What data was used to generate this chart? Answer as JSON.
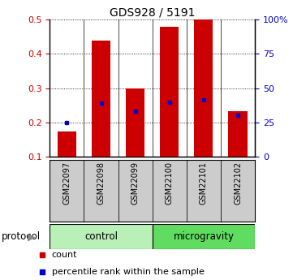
{
  "title": "GDS928 / 5191",
  "samples": [
    "GSM22097",
    "GSM22098",
    "GSM22099",
    "GSM22100",
    "GSM22101",
    "GSM22102"
  ],
  "red_bar_top": [
    0.175,
    0.438,
    0.3,
    0.48,
    0.5,
    0.232
  ],
  "red_bar_bottom": 0.1,
  "blue_marker": [
    0.201,
    0.256,
    0.232,
    0.26,
    0.265,
    0.22
  ],
  "ylim": [
    0.1,
    0.5
  ],
  "yticks": [
    0.1,
    0.2,
    0.3,
    0.4,
    0.5
  ],
  "right_ytick_values": [
    0,
    25,
    50,
    75,
    100
  ],
  "right_ylabels": [
    "0",
    "25",
    "50",
    "75",
    "100%"
  ],
  "bar_color": "#cc0000",
  "blue_color": "#0000cc",
  "tick_label_color_left": "#cc0000",
  "tick_label_color_right": "#0000cc",
  "sample_box_color": "#cccccc",
  "control_color": "#b8f0b8",
  "microgravity_color": "#60dd60",
  "background_color": "#ffffff",
  "bar_width": 0.55
}
